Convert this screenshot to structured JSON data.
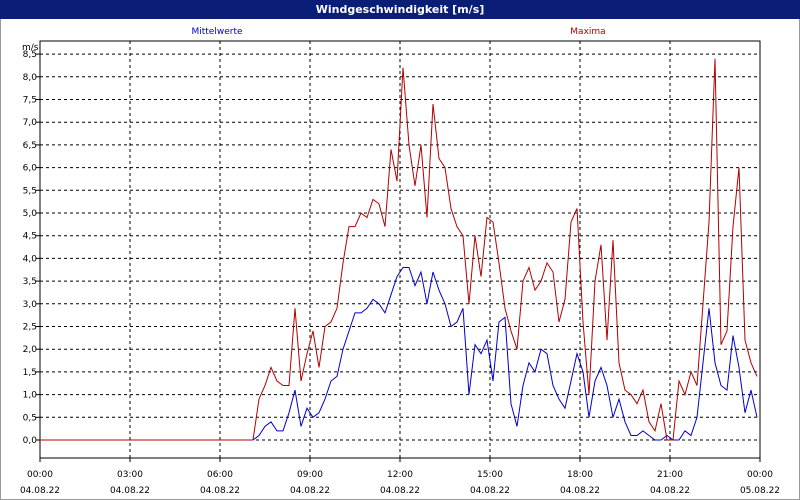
{
  "window": {
    "title": "Windgeschwindigkeit [m/s]"
  },
  "chart_data": {
    "type": "line",
    "title": "Windgeschwindigkeit [m/s]",
    "ylabel": "m/s",
    "xlabel": "",
    "ylim": [
      0,
      8.75
    ],
    "yticks": [
      0,
      0.5,
      1,
      1.5,
      2,
      2.5,
      3,
      3.5,
      4,
      4.5,
      5,
      5.5,
      6,
      6.5,
      7,
      7.5,
      8,
      8.5
    ],
    "ytick_labels": [
      "0,0",
      "0,5",
      "1,0",
      "1,5",
      "2,0",
      "2,5",
      "3,0",
      "3,5",
      "4,0",
      "4,5",
      "5,0",
      "5,5",
      "6,0",
      "6,5",
      "7,0",
      "7,5",
      "8,0",
      "8,5"
    ],
    "xlim_hours": [
      0,
      24
    ],
    "xticks": [
      {
        "hour": 0,
        "time": "00:00",
        "date": "04.08.22"
      },
      {
        "hour": 3,
        "time": "03:00",
        "date": "04.08.22"
      },
      {
        "hour": 6,
        "time": "06:00",
        "date": "04.08.22"
      },
      {
        "hour": 9,
        "time": "09:00",
        "date": "04.08.22"
      },
      {
        "hour": 12,
        "time": "12:00",
        "date": "04.08.22"
      },
      {
        "hour": 15,
        "time": "15:00",
        "date": "04.08.22"
      },
      {
        "hour": 18,
        "time": "18:00",
        "date": "04.08.22"
      },
      {
        "hour": 21,
        "time": "21:00",
        "date": "04.08.22"
      },
      {
        "hour": 24,
        "time": "00:00",
        "date": "05.08.22"
      }
    ],
    "grid": true,
    "series": [
      {
        "name": "Mittelwerte",
        "color": "#0000c8",
        "x": [
          0,
          7.1,
          7.3,
          7.5,
          7.7,
          7.9,
          8.1,
          8.3,
          8.5,
          8.7,
          8.9,
          9.1,
          9.3,
          9.5,
          9.7,
          9.9,
          10.1,
          10.3,
          10.5,
          10.7,
          10.9,
          11.1,
          11.3,
          11.5,
          11.7,
          11.9,
          12.1,
          12.3,
          12.5,
          12.7,
          12.9,
          13.1,
          13.3,
          13.5,
          13.7,
          13.9,
          14.1,
          14.3,
          14.5,
          14.7,
          14.9,
          15.1,
          15.3,
          15.5,
          15.7,
          15.9,
          16.1,
          16.3,
          16.5,
          16.7,
          16.9,
          17.1,
          17.3,
          17.5,
          17.7,
          17.9,
          18.1,
          18.3,
          18.5,
          18.7,
          18.9,
          19.1,
          19.3,
          19.5,
          19.7,
          19.9,
          20.1,
          20.3,
          20.5,
          20.7,
          20.9,
          21.1,
          21.3,
          21.5,
          21.7,
          21.9,
          22.1,
          22.3,
          22.5,
          22.7,
          22.9,
          23.1,
          23.3,
          23.5,
          23.7,
          23.9
        ],
        "y": [
          0,
          0,
          0.1,
          0.3,
          0.4,
          0.2,
          0.2,
          0.6,
          1.1,
          0.3,
          0.7,
          0.5,
          0.6,
          0.9,
          1.3,
          1.4,
          2.0,
          2.4,
          2.8,
          2.8,
          2.9,
          3.1,
          3.0,
          2.8,
          3.2,
          3.6,
          3.8,
          3.8,
          3.4,
          3.7,
          3.0,
          3.7,
          3.3,
          3.0,
          2.5,
          2.6,
          2.9,
          1.0,
          2.1,
          1.9,
          2.2,
          1.3,
          2.6,
          2.7,
          0.8,
          0.3,
          1.2,
          1.7,
          1.5,
          2.0,
          1.9,
          1.2,
          0.9,
          0.7,
          1.3,
          1.9,
          1.5,
          0.5,
          1.3,
          1.6,
          1.2,
          0.5,
          0.9,
          0.4,
          0.1,
          0.1,
          0.2,
          0.1,
          0.0,
          0.0,
          0.1,
          0.0,
          0.0,
          0.2,
          0.1,
          0.5,
          1.7,
          2.9,
          1.7,
          1.2,
          1.1,
          2.3,
          1.6,
          0.6,
          1.1,
          0.5
        ]
      },
      {
        "name": "Maxima",
        "color": "#b40000",
        "x": [
          0,
          7.1,
          7.3,
          7.5,
          7.7,
          7.9,
          8.1,
          8.3,
          8.5,
          8.7,
          8.9,
          9.1,
          9.3,
          9.5,
          9.7,
          9.9,
          10.1,
          10.3,
          10.5,
          10.7,
          10.9,
          11.1,
          11.3,
          11.5,
          11.7,
          11.9,
          12.1,
          12.3,
          12.5,
          12.7,
          12.9,
          13.1,
          13.3,
          13.5,
          13.7,
          13.9,
          14.1,
          14.3,
          14.5,
          14.7,
          14.9,
          15.1,
          15.3,
          15.5,
          15.7,
          15.9,
          16.1,
          16.3,
          16.5,
          16.7,
          16.9,
          17.1,
          17.3,
          17.5,
          17.7,
          17.9,
          18.1,
          18.3,
          18.5,
          18.7,
          18.9,
          19.1,
          19.3,
          19.5,
          19.7,
          19.9,
          20.1,
          20.3,
          20.5,
          20.7,
          20.9,
          21.1,
          21.3,
          21.5,
          21.7,
          21.9,
          22.1,
          22.3,
          22.5,
          22.7,
          22.9,
          23.1,
          23.3,
          23.5,
          23.7,
          23.9
        ],
        "y": [
          0,
          0,
          0.9,
          1.2,
          1.6,
          1.3,
          1.2,
          1.2,
          2.9,
          1.3,
          1.9,
          2.4,
          1.6,
          2.5,
          2.6,
          2.9,
          3.9,
          4.7,
          4.7,
          5.0,
          4.9,
          5.3,
          5.2,
          4.7,
          6.4,
          5.7,
          8.2,
          6.5,
          5.6,
          6.5,
          4.9,
          7.4,
          6.2,
          6.0,
          5.1,
          4.7,
          4.5,
          3.0,
          4.5,
          3.6,
          4.9,
          4.8,
          3.9,
          2.9,
          2.4,
          2.0,
          3.5,
          3.8,
          3.3,
          3.5,
          3.9,
          3.7,
          2.6,
          3.1,
          4.8,
          5.1,
          2.6,
          1.0,
          3.5,
          4.3,
          2.2,
          4.4,
          1.7,
          1.1,
          1.0,
          0.8,
          1.1,
          0.4,
          0.2,
          0.8,
          0.0,
          0.0,
          1.3,
          1.0,
          1.5,
          1.2,
          3.0,
          4.8,
          8.4,
          2.1,
          2.4,
          4.7,
          6.0,
          2.2,
          1.7,
          1.4
        ]
      }
    ]
  }
}
